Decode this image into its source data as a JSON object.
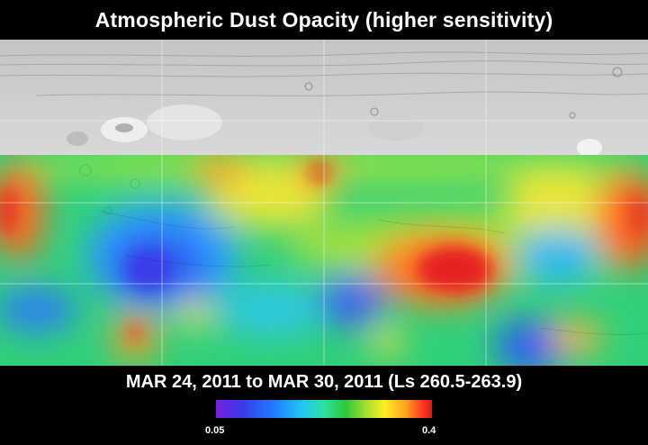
{
  "title": "Atmospheric Dust Opacity (higher sensitivity)",
  "date_range": "MAR 24, 2011 to MAR 30, 2011 (Ls 260.5-263.9)",
  "legend": {
    "min_label": "0.05",
    "max_label": "0.4"
  },
  "colors": {
    "background": "#000000",
    "text": "#ffffff",
    "scale_low": "#7a1fe0",
    "scale_high": "#e01818"
  }
}
